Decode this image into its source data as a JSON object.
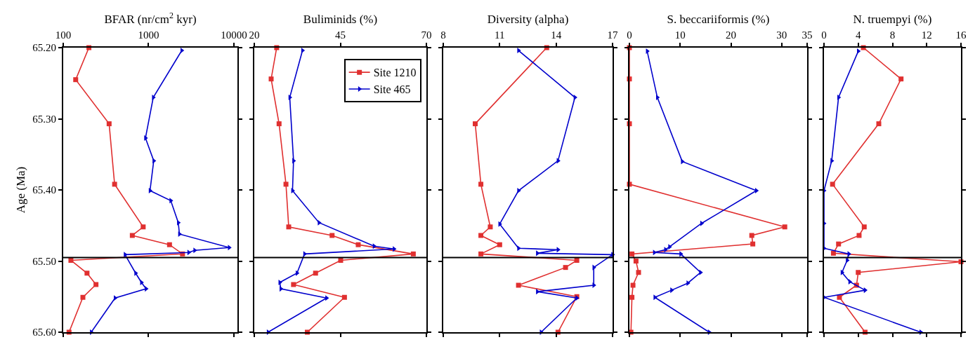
{
  "chart_data": [
    {
      "type": "line",
      "orientation": "horizontal",
      "xlabel": "BFAR (nr/cm$^{2}$ kyr)",
      "ylabel": "Age (Ma)",
      "log": "x",
      "xlim": [
        100,
        11000
      ],
      "xticks": [
        100,
        1000,
        10000
      ],
      "ylim": [
        65.6,
        65.2
      ],
      "yticks": [
        {
          "value": 65.2,
          "label": "65.20"
        },
        {
          "value": 65.3,
          "label": "65.30"
        },
        {
          "value": 65.4,
          "label": "65.40"
        },
        {
          "value": 65.5,
          "label": "65.50"
        },
        {
          "value": 65.6,
          "label": "65.60"
        }
      ],
      "grid": false,
      "legend": false,
      "ref_lines": [
        {
          "axis": "y",
          "value": 65.495,
          "color": "#000000"
        }
      ],
      "series": [
        {
          "color": "#e03030",
          "marker": "square",
          "x": [
            65.2,
            65.245,
            65.307,
            65.392,
            65.452,
            65.464,
            65.477,
            65.49,
            65.499,
            65.517,
            65.533,
            65.551,
            65.6
          ],
          "values": [
            200,
            140,
            345,
            400,
            865,
            645,
            1760,
            2500,
            123,
            190,
            242,
            170,
            117
          ]
        },
        {
          "color": "#0000cc",
          "marker": "triangle",
          "x": [
            65.204,
            65.27,
            65.327,
            65.359,
            65.401,
            65.415,
            65.446,
            65.462,
            65.481,
            65.485,
            65.488,
            65.491,
            65.517,
            65.53,
            65.539,
            65.552,
            65.6
          ],
          "values": [
            2450,
            1135,
            920,
            1150,
            1040,
            1820,
            2230,
            2300,
            8800,
            3470,
            2950,
            530,
            705,
            825,
            935,
            405,
            213
          ]
        }
      ]
    },
    {
      "type": "line",
      "orientation": "horizontal",
      "xlabel": "Buliminids (%)",
      "xlim": [
        20,
        70
      ],
      "xticks": [
        20,
        45,
        70
      ],
      "ylim": [
        65.6,
        65.2
      ],
      "yticks": [
        {
          "value": 65.2,
          "label": null
        },
        {
          "value": 65.3,
          "label": null
        },
        {
          "value": 65.4,
          "label": null
        },
        {
          "value": 65.5,
          "label": null
        },
        {
          "value": 65.6,
          "label": null
        }
      ],
      "tick_labels": "x",
      "grid": false,
      "legend": "top right",
      "ref_lines": [
        {
          "axis": "y",
          "value": 65.495,
          "color": "#000000"
        }
      ],
      "series": [
        {
          "name": "Site 1210",
          "color": "#e03030",
          "marker": "square",
          "x": [
            65.2,
            65.244,
            65.307,
            65.392,
            65.452,
            65.464,
            65.477,
            65.49,
            65.499,
            65.517,
            65.533,
            65.551,
            65.6
          ],
          "values": [
            26.5,
            24.9,
            27.2,
            29.2,
            30.0,
            42.6,
            50.2,
            66.2,
            45.1,
            37.8,
            31.4,
            46.2,
            35.4
          ]
        },
        {
          "name": "Site 465",
          "color": "#0000cc",
          "marker": "triangle",
          "x": [
            65.204,
            65.27,
            65.359,
            65.401,
            65.446,
            65.479,
            65.483,
            65.49,
            65.517,
            65.53,
            65.539,
            65.552,
            65.6
          ],
          "values": [
            34.0,
            30.3,
            31.4,
            31.1,
            38.8,
            54.8,
            60.6,
            34.6,
            32.4,
            27.4,
            27.7,
            41.0,
            24.0
          ]
        }
      ]
    },
    {
      "type": "line",
      "orientation": "horizontal",
      "xlabel": "Diversity (alpha)",
      "xlim": [
        8,
        17
      ],
      "xticks": [
        8,
        11,
        14,
        17
      ],
      "ylim": [
        65.6,
        65.2
      ],
      "yticks": [
        {
          "value": 65.2,
          "label": null
        },
        {
          "value": 65.3,
          "label": null
        },
        {
          "value": 65.4,
          "label": null
        },
        {
          "value": 65.5,
          "label": null
        },
        {
          "value": 65.6,
          "label": null
        }
      ],
      "tick_labels": "x",
      "grid": false,
      "legend": false,
      "ref_lines": [
        {
          "axis": "y",
          "value": 65.495,
          "color": "#000000"
        }
      ],
      "series": [
        {
          "color": "#e03030",
          "marker": "square",
          "x": [
            65.2,
            65.307,
            65.392,
            65.452,
            65.464,
            65.477,
            65.49,
            65.499,
            65.509,
            65.534,
            65.55,
            65.6
          ],
          "values": [
            13.5,
            9.7,
            10.0,
            10.5,
            10.0,
            11.0,
            10.0,
            15.1,
            14.5,
            12.0,
            15.1,
            14.1
          ]
        },
        {
          "color": "#0000cc",
          "marker": "triangle",
          "x": [
            65.204,
            65.27,
            65.359,
            65.401,
            65.448,
            65.482,
            65.484,
            65.489,
            65.491,
            65.509,
            65.534,
            65.543,
            65.552,
            65.6
          ],
          "values": [
            12.0,
            15.0,
            14.1,
            12.0,
            11.0,
            12.0,
            14.1,
            13.0,
            17.0,
            16.0,
            16.0,
            13.0,
            15.1,
            13.2
          ]
        }
      ]
    },
    {
      "type": "line",
      "orientation": "horizontal",
      "xlabel": "S. beccariiformis (%)",
      "xlim": [
        0,
        35
      ],
      "xticks": [
        0,
        10,
        20,
        30,
        35
      ],
      "ylim": [
        65.6,
        65.2
      ],
      "yticks": [
        {
          "value": 65.2,
          "label": null
        },
        {
          "value": 65.3,
          "label": null
        },
        {
          "value": 65.4,
          "label": null
        },
        {
          "value": 65.5,
          "label": null
        },
        {
          "value": 65.6,
          "label": null
        }
      ],
      "tick_labels": "x",
      "grid": false,
      "legend": false,
      "ref_lines": [
        {
          "axis": "y",
          "value": 65.495,
          "color": "#000000"
        }
      ],
      "series": [
        {
          "color": "#e03030",
          "marker": "square",
          "x": [
            65.2,
            65.244,
            65.307,
            65.392,
            65.452,
            65.464,
            65.476,
            65.49,
            65.5,
            65.516,
            65.534,
            65.551,
            65.6
          ],
          "values": [
            0,
            0,
            0,
            0,
            30.6,
            24.1,
            24.3,
            0.5,
            1.3,
            1.8,
            0.7,
            0.5,
            0.3
          ]
        },
        {
          "color": "#0000cc",
          "marker": "triangle",
          "x": [
            65.205,
            65.27,
            65.36,
            65.401,
            65.447,
            65.48,
            65.484,
            65.488,
            65.49,
            65.516,
            65.531,
            65.541,
            65.551,
            65.6
          ],
          "values": [
            3.5,
            5.5,
            10.4,
            25.0,
            14.2,
            7.9,
            7.1,
            4.9,
            10.1,
            14.0,
            11.5,
            8.3,
            5.0,
            15.7
          ]
        }
      ]
    },
    {
      "type": "line",
      "orientation": "horizontal",
      "xlabel": "N. truempyi (%)",
      "xlim": [
        0,
        16
      ],
      "xticks": [
        0,
        4,
        8,
        12,
        16
      ],
      "ylim": [
        65.6,
        65.2
      ],
      "yticks": [
        {
          "value": 65.2,
          "label": null
        },
        {
          "value": 65.3,
          "label": null
        },
        {
          "value": 65.4,
          "label": null
        },
        {
          "value": 65.5,
          "label": null
        },
        {
          "value": 65.6,
          "label": null
        }
      ],
      "tick_labels": "x",
      "grid": false,
      "legend": false,
      "ref_lines": [
        {
          "axis": "y",
          "value": 65.495,
          "color": "#000000"
        }
      ],
      "series": [
        {
          "color": "#e03030",
          "marker": "square",
          "x": [
            65.2,
            65.244,
            65.307,
            65.392,
            65.452,
            65.464,
            65.476,
            65.489,
            65.501,
            65.516,
            65.534,
            65.551,
            65.6
          ],
          "values": [
            4.6,
            9.0,
            6.4,
            1.0,
            4.7,
            4.1,
            1.7,
            1.1,
            16.0,
            4.0,
            3.8,
            1.8,
            4.8
          ]
        },
        {
          "color": "#0000cc",
          "marker": "triangle",
          "x": [
            65.205,
            65.27,
            65.359,
            65.401,
            65.447,
            65.482,
            65.49,
            65.499,
            65.516,
            65.529,
            65.541,
            65.551,
            65.6
          ],
          "values": [
            4.0,
            1.7,
            0.9,
            0,
            0,
            0,
            2.9,
            2.7,
            2.1,
            3.0,
            4.8,
            0,
            11.3
          ]
        }
      ]
    }
  ]
}
